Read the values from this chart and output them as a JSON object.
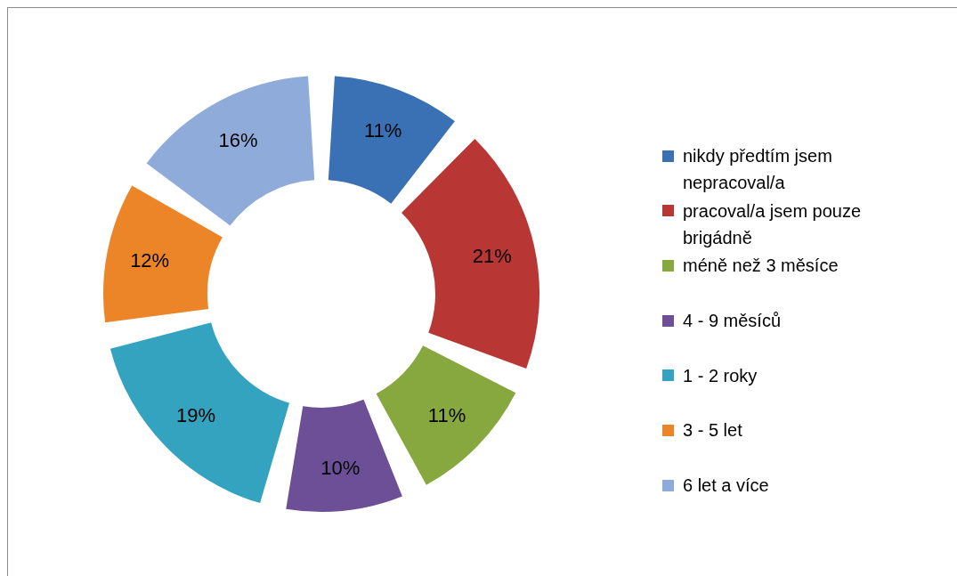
{
  "chart_data": {
    "type": "donut",
    "categories": [
      "nikdy předtím jsem nepracoval/a",
      "pracoval/a jsem pouze brigádně",
      "méně než 3 měsíce",
      "4 - 9 měsíců",
      "1 - 2 roky",
      "3 - 5 let",
      "6 let a více"
    ],
    "values": [
      11,
      21,
      11,
      10,
      19,
      12,
      16
    ],
    "colors": [
      "#3a70b4",
      "#b83634",
      "#86a83e",
      "#6c4f96",
      "#33a3bf",
      "#ec8428",
      "#8fabd9"
    ],
    "value_labels": [
      "11%",
      "21%",
      "11%",
      "10%",
      "19%",
      "12%",
      "16%"
    ],
    "legend": "right"
  }
}
